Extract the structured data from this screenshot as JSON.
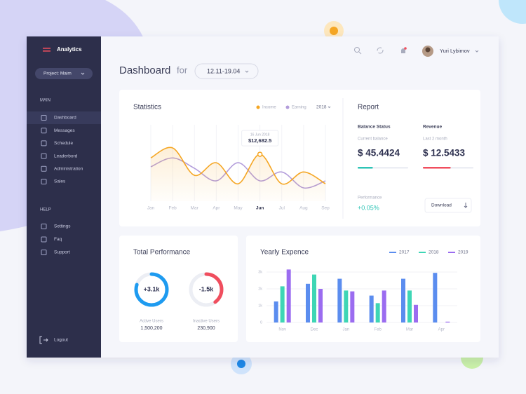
{
  "sidebar": {
    "brand": "Analytics",
    "project": "Project: Maim",
    "main_heading": "MAIN",
    "main_items": [
      "Dashboard",
      "Messages",
      "Schedule",
      "Leaderbord",
      "Administration",
      "Sales"
    ],
    "help_heading": "HELP",
    "help_items": [
      "Settings",
      "Faq",
      "Support"
    ],
    "logout": "Logout"
  },
  "header": {
    "title": "Dashboard",
    "for": "for",
    "date_range": "12.11-19.04",
    "user": "Yuri Lybimov"
  },
  "statistics": {
    "title": "Statistics",
    "year": "2018",
    "tooltip": {
      "date": "16 Jun 2018",
      "label": "$12,682.5"
    },
    "chart_data": {
      "type": "line",
      "categories": [
        "Jan",
        "Feb",
        "Mar",
        "Apr",
        "May",
        "Jun",
        "Jul",
        "Aug",
        "Sep"
      ],
      "series": [
        {
          "name": "Income",
          "color": "#f5a623",
          "values": [
            11700,
            14400,
            7000,
            10400,
            4700,
            12682.5,
            4700,
            7900,
            4700
          ]
        },
        {
          "name": "Earning",
          "color": "#b39ddb",
          "values": [
            9300,
            11700,
            8900,
            5500,
            10400,
            5500,
            7900,
            3600,
            5500
          ]
        }
      ]
    }
  },
  "report": {
    "title": "Report",
    "balance": {
      "heading": "Balance Status",
      "caption": "Current balance",
      "amount": "$ 45.4424",
      "progress": 30,
      "color": "#2ec4b6"
    },
    "revenue": {
      "heading": "Revenue",
      "caption": "Last 2 month",
      "amount": "$ 12.5433",
      "progress": 55,
      "color": "#f04e5e"
    },
    "performance_label": "Performance",
    "performance_value": "+0.05%",
    "download": "Download"
  },
  "total_performance": {
    "title": "Total Performance",
    "gauges": [
      {
        "value_label": "+3.1k",
        "caption": "Active Users",
        "count": "1,500,200",
        "percent": 80,
        "color": "#1e9bf0"
      },
      {
        "value_label": "-1.5k",
        "caption": "Inactive Users",
        "count": "230,900",
        "percent": 40,
        "color": "#f04e5e"
      }
    ]
  },
  "yearly_expence": {
    "title": "Yearly Expence",
    "chart_data": {
      "type": "bar",
      "categories": [
        "Nov",
        "Dec",
        "Jan",
        "Feb",
        "Mar",
        "Apr"
      ],
      "series": [
        {
          "name": "2017",
          "color": "#5b8def",
          "values": [
            1250,
            2300,
            2600,
            1600,
            2600,
            2950
          ]
        },
        {
          "name": "2018",
          "color": "#3ed6b5",
          "values": [
            2150,
            2850,
            1900,
            1150,
            1900,
            null
          ]
        },
        {
          "name": "2019",
          "color": "#9b6cf0",
          "values": [
            3150,
            2000,
            1850,
            1900,
            1050,
            50
          ]
        }
      ],
      "ylim": [
        0,
        3200
      ],
      "yticks": [
        0,
        {
          "value": 1000,
          "label": "1k"
        },
        {
          "value": 2000,
          "label": "2k"
        },
        {
          "value": 3000,
          "label": "3k"
        }
      ],
      "grid": true
    }
  }
}
